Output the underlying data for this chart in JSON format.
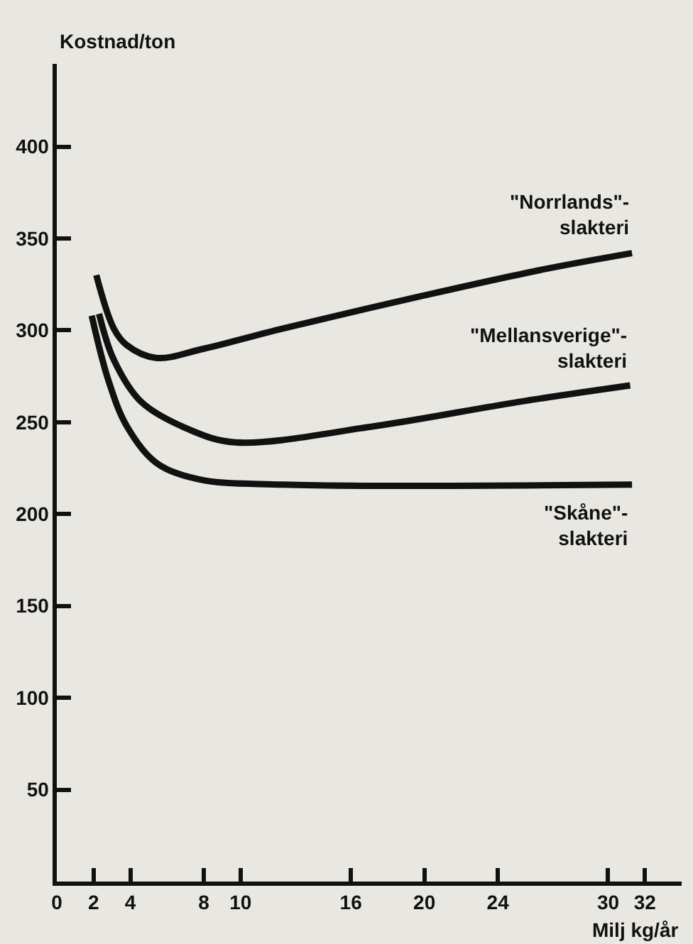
{
  "chart_data": {
    "type": "line",
    "xlabel": "Milj kg/år",
    "ylabel": "Kostnad/ton",
    "xlim": [
      0,
      34
    ],
    "ylim": [
      0,
      445
    ],
    "xticks": [
      0,
      2,
      4,
      8,
      10,
      16,
      20,
      24,
      30,
      32
    ],
    "yticks": [
      50,
      100,
      150,
      200,
      250,
      300,
      350,
      400
    ],
    "grid": false,
    "legend": false,
    "marker": "none",
    "line_style": "solid",
    "series": [
      {
        "name": "\"Norrlands\"-\nslakteri",
        "color": "#111111",
        "x": [
          2.15,
          3.1,
          3.8,
          5.4,
          8,
          12.3,
          20,
          26.4,
          31.3
        ],
        "values": [
          330,
          301,
          292,
          285,
          290,
          301,
          319,
          333,
          342
        ]
      },
      {
        "name": "\"Mellansverige\"-\nslakteri",
        "color": "#111111",
        "x": [
          2.3,
          3.1,
          4.6,
          7.2,
          9.7,
          17.4,
          25.1,
          31.2
        ],
        "values": [
          309,
          284,
          261,
          246,
          239,
          248,
          261,
          270
        ]
      },
      {
        "name": "\"Skåne\"-\nslakteri",
        "color": "#111111",
        "x": [
          1.9,
          2.8,
          3.8,
          5.4,
          7.7,
          12.3,
          31.3
        ],
        "values": [
          308,
          273,
          248,
          228,
          219,
          216,
          216
        ]
      }
    ]
  }
}
